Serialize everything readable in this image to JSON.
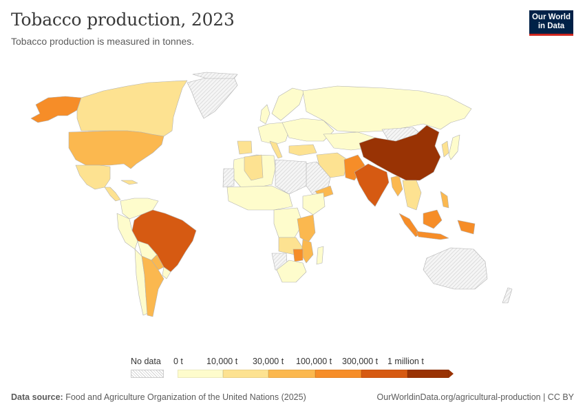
{
  "header": {
    "title": "Tobacco production, 2023",
    "subtitle": "Tobacco production is measured in tonnes."
  },
  "logo": {
    "line1": "Our World",
    "line2": "in Data"
  },
  "legend": {
    "no_data_label": "No data",
    "bins": [
      {
        "label": "0 t",
        "color": "#fefccc"
      },
      {
        "label": "10,000 t",
        "color": "#fde291"
      },
      {
        "label": "30,000 t",
        "color": "#fbb84f"
      },
      {
        "label": "100,000 t",
        "color": "#f68d28"
      },
      {
        "label": "300,000 t",
        "color": "#d65a12"
      },
      {
        "label": "1 million t",
        "color": "#993304"
      }
    ]
  },
  "footer": {
    "source_prefix": "Data source:",
    "source_text": "Food and Agriculture Organization of the United Nations (2025)",
    "credit": "OurWorldinData.org/agricultural-production | CC BY"
  },
  "colors": {
    "nodata": "#e6e6e6",
    "border": "#a8a8a8"
  }
}
